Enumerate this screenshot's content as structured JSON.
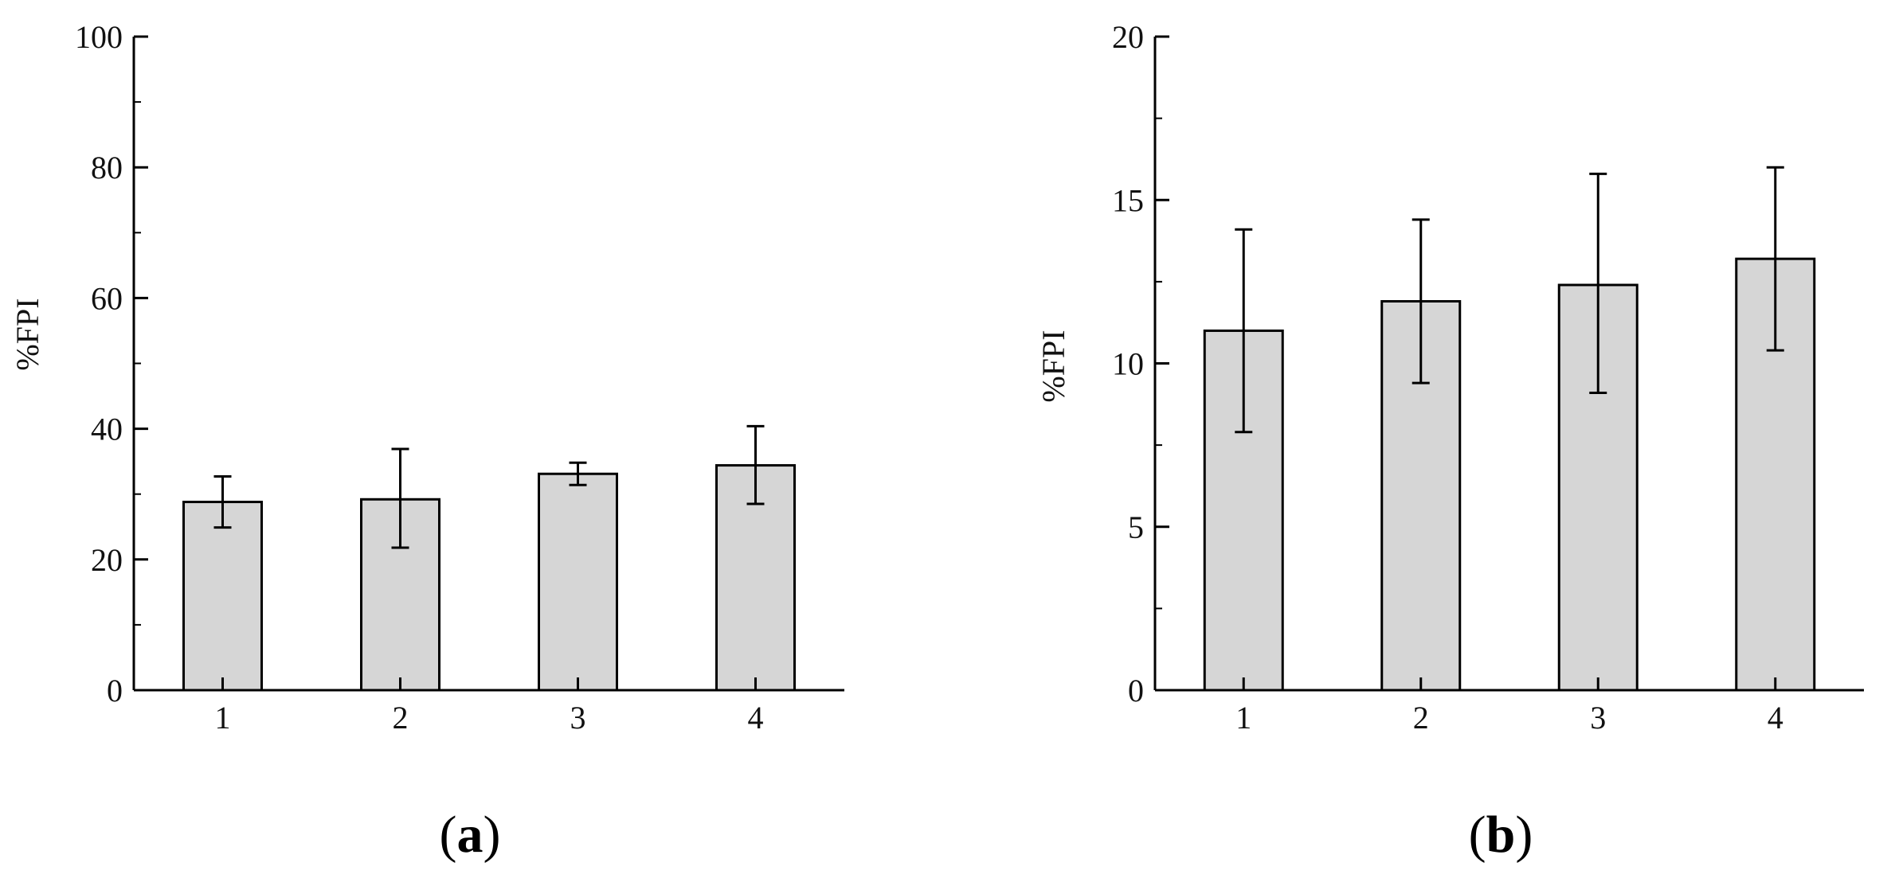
{
  "chart_data": [
    {
      "panel": "(a)",
      "panel_letter": "a",
      "type": "bar",
      "categories": [
        "1",
        "2",
        "3",
        "4"
      ],
      "values": [
        28.8,
        29.2,
        33.1,
        34.4
      ],
      "error_low": [
        24.9,
        21.8,
        31.4,
        28.5
      ],
      "error_high": [
        32.7,
        36.9,
        34.8,
        40.4
      ],
      "xlabel": "",
      "ylabel": "%FPI",
      "ylim": [
        0,
        100
      ],
      "yticks": [
        "0",
        "20",
        "40",
        "60",
        "80",
        "100"
      ],
      "bar_color": "#d6d6d6",
      "grid": false
    },
    {
      "panel": "(b)",
      "panel_letter": "b",
      "type": "bar",
      "categories": [
        "1",
        "2",
        "3",
        "4"
      ],
      "values": [
        11.0,
        11.9,
        12.4,
        13.2
      ],
      "error_low": [
        7.9,
        9.4,
        9.1,
        10.4
      ],
      "error_high": [
        14.1,
        14.4,
        15.8,
        16.0
      ],
      "xlabel": "",
      "ylabel": "%FPI",
      "ylim": [
        0,
        20
      ],
      "yticks": [
        "0",
        "5",
        "10",
        "15",
        "20"
      ],
      "bar_color": "#d6d6d6",
      "grid": false
    }
  ]
}
